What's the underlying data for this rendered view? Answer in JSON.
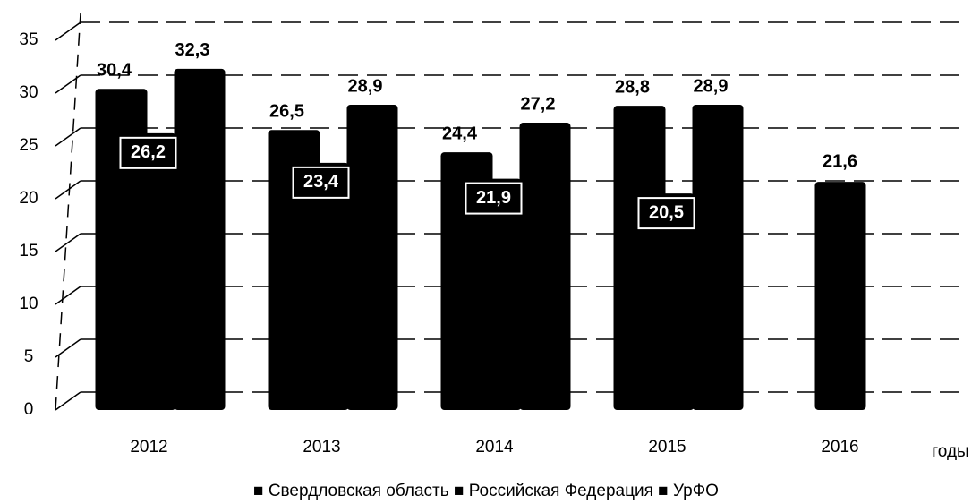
{
  "chart_data": {
    "type": "bar",
    "categories": [
      "2012",
      "2013",
      "2014",
      "2015",
      "2016"
    ],
    "x_label": "годы",
    "series": [
      {
        "name": "Свердловская область",
        "color": "#000000",
        "values": [
          30.4,
          26.5,
          24.4,
          28.8,
          21.6
        ],
        "value_labels": [
          "30,4",
          "26,5",
          "24,4",
          "28,8",
          "21,6"
        ]
      },
      {
        "name": "Российская Федерация",
        "color": "#000000",
        "values": [
          26.2,
          23.4,
          21.9,
          20.5,
          null
        ],
        "value_labels": [
          "26,2",
          "23,4",
          "21,9",
          "20,5",
          null
        ]
      },
      {
        "name": "УрФО",
        "color": "#000000",
        "values": [
          32.3,
          28.9,
          27.2,
          28.9,
          null
        ],
        "value_labels": [
          "32,3",
          "28,9",
          "27,2",
          "28,9",
          null
        ]
      }
    ],
    "ylim": [
      0,
      35
    ],
    "yticks": [
      0,
      5,
      10,
      15,
      20,
      25,
      30,
      35
    ],
    "grid": true
  }
}
